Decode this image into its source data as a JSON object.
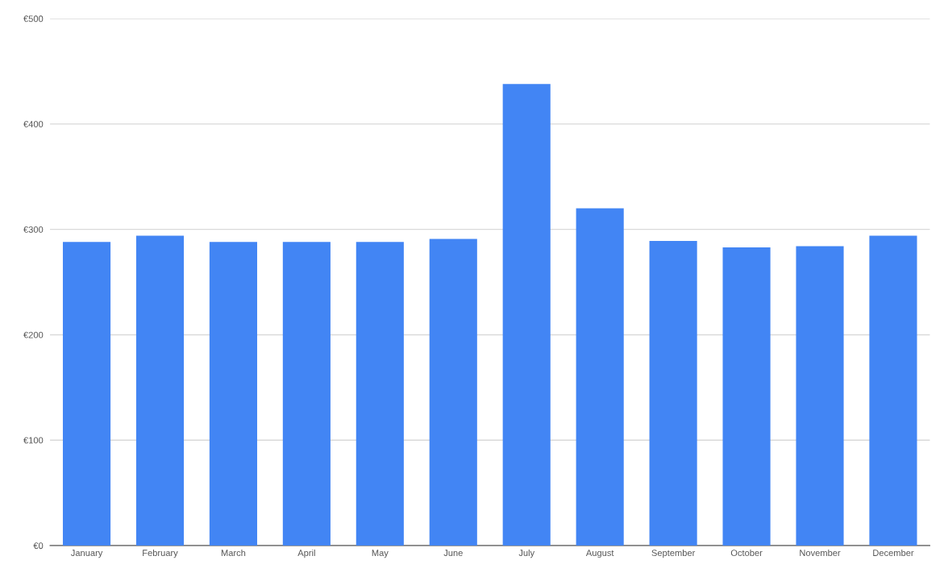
{
  "chart_data": {
    "type": "bar",
    "categories": [
      "January",
      "February",
      "March",
      "April",
      "May",
      "June",
      "July",
      "August",
      "September",
      "October",
      "November",
      "December"
    ],
    "values": [
      288,
      294,
      288,
      288,
      288,
      291,
      438,
      320,
      289,
      283,
      284,
      294
    ],
    "color": "#4285f4",
    "ylim": [
      0,
      500
    ],
    "yticks": [
      {
        "value": 0,
        "label": "€0"
      },
      {
        "value": 100,
        "label": "€100"
      },
      {
        "value": 200,
        "label": "€200"
      },
      {
        "value": 300,
        "label": "€300"
      },
      {
        "value": 400,
        "label": "€400"
      },
      {
        "value": 500,
        "label": "€500"
      }
    ],
    "grid": "y"
  }
}
